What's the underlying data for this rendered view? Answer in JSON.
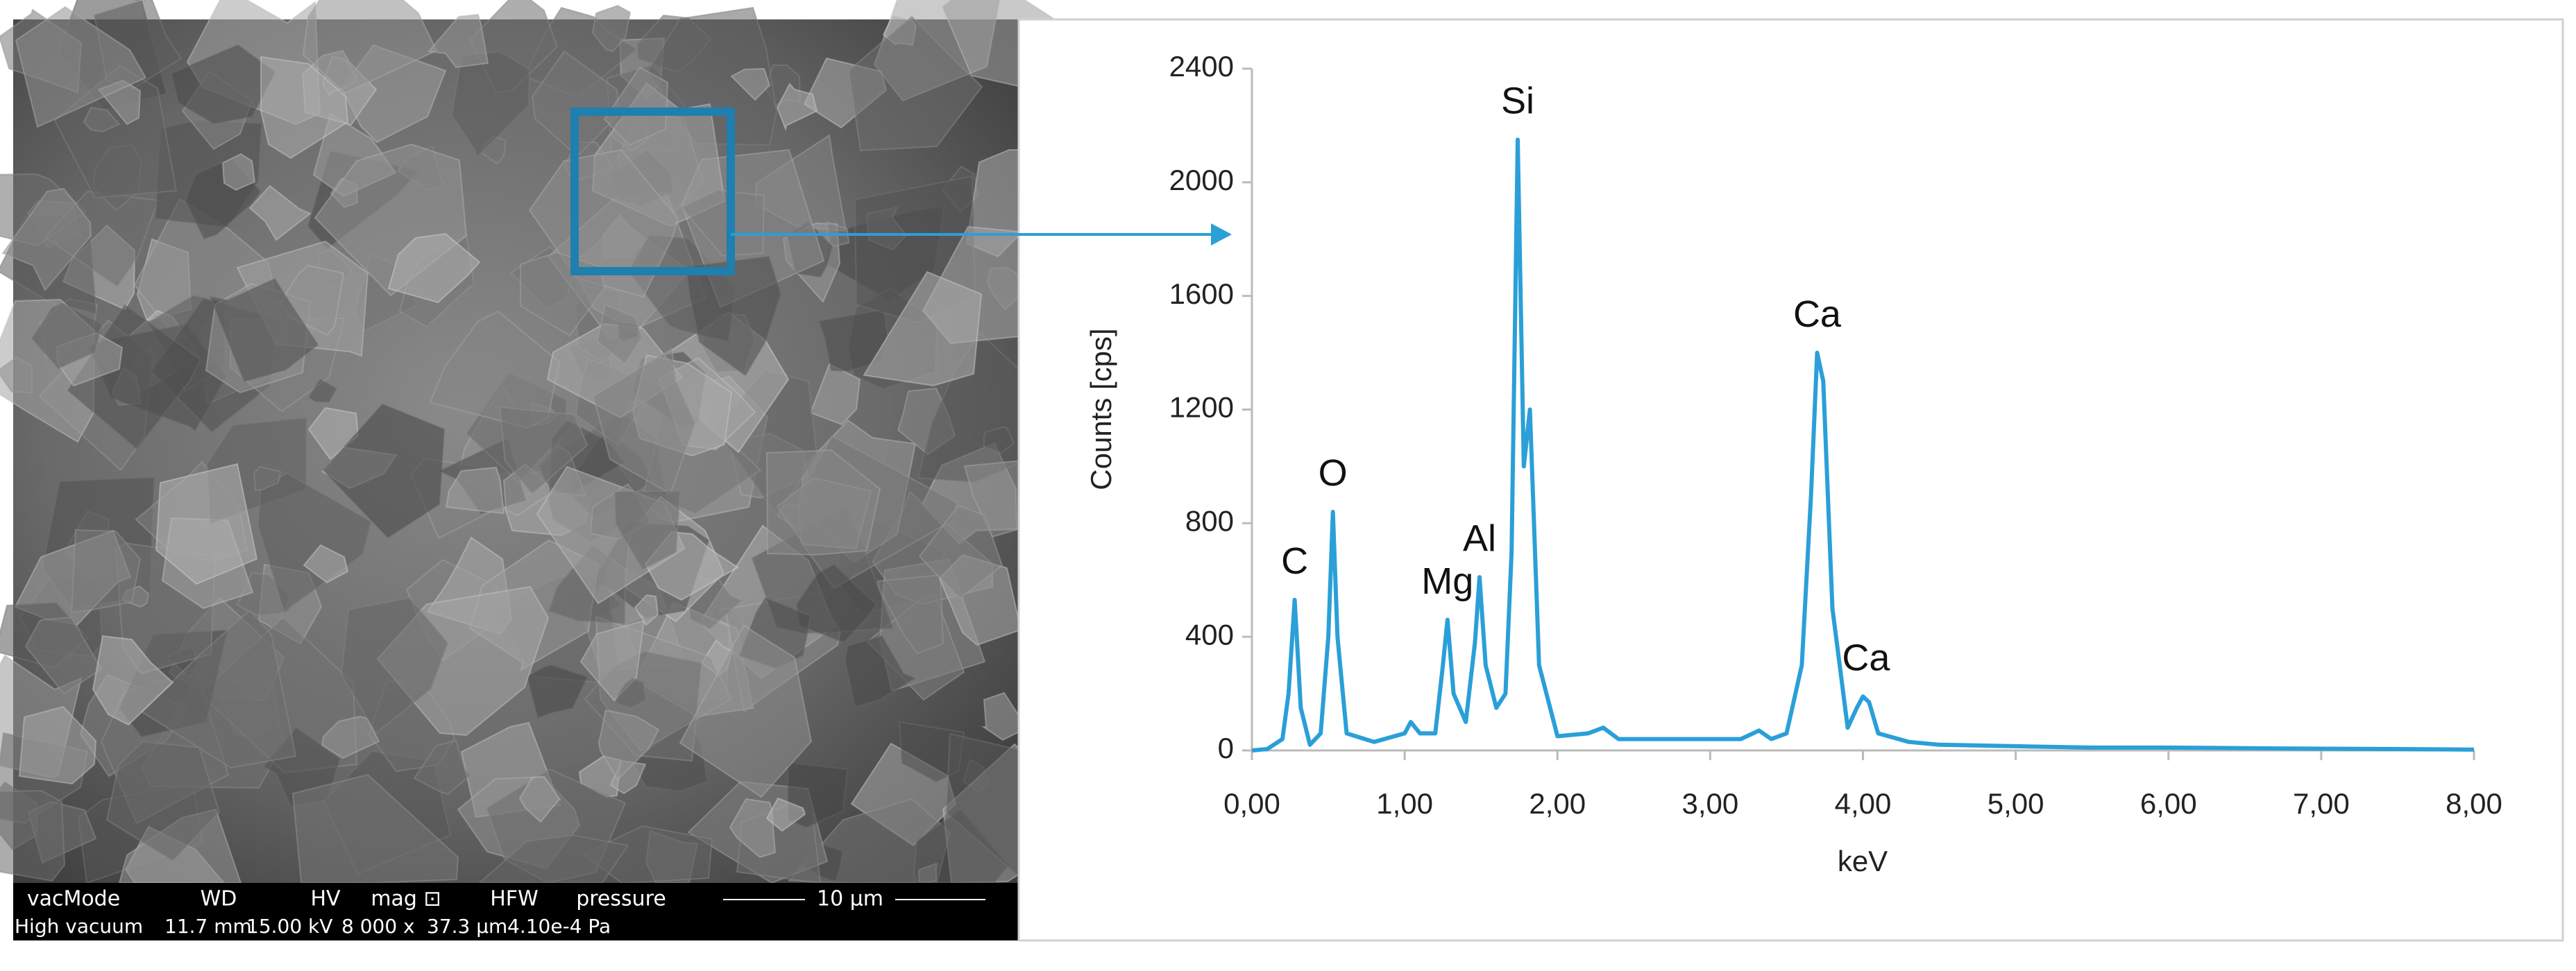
{
  "sem": {
    "header": [
      "vacMode",
      "WD",
      "HV",
      "mag ⊡",
      "HFW",
      "pressure"
    ],
    "scale_bar": "10 μm",
    "values": [
      "High vacuum",
      "11.7 mm",
      "15.00 kV",
      "8 000 x",
      "37.3 μm",
      "4.10e-4 Pa"
    ]
  },
  "chart_data": {
    "type": "line",
    "x_label": "keV",
    "y_label": "Counts [cps]",
    "color": "#2a9fd8",
    "x": [
      0,
      0.1,
      0.2,
      0.24,
      0.28,
      0.32,
      0.38,
      0.45,
      0.5,
      0.53,
      0.56,
      0.62,
      0.8,
      1.0,
      1.04,
      1.1,
      1.2,
      1.25,
      1.28,
      1.32,
      1.4,
      1.46,
      1.49,
      1.53,
      1.6,
      1.66,
      1.7,
      1.74,
      1.78,
      1.82,
      1.88,
      2.0,
      2.2,
      2.3,
      2.4,
      2.6,
      3.0,
      3.2,
      3.32,
      3.4,
      3.5,
      3.6,
      3.66,
      3.7,
      3.74,
      3.8,
      3.9,
      3.96,
      4.0,
      4.04,
      4.1,
      4.3,
      4.5,
      5.0,
      5.5,
      6.0,
      6.5,
      7.0,
      7.5,
      8.0
    ],
    "values": [
      0,
      5,
      40,
      200,
      530,
      150,
      20,
      60,
      400,
      840,
      400,
      60,
      30,
      60,
      100,
      60,
      60,
      300,
      460,
      200,
      100,
      380,
      610,
      300,
      150,
      200,
      700,
      2150,
      1000,
      1200,
      300,
      50,
      60,
      80,
      40,
      40,
      40,
      40,
      70,
      40,
      60,
      300,
      900,
      1400,
      1300,
      500,
      80,
      150,
      190,
      170,
      60,
      30,
      20,
      15,
      10,
      10,
      8,
      6,
      5,
      3
    ],
    "xlim": [
      0,
      8
    ],
    "ylim": [
      0,
      2400
    ],
    "xticks": [
      {
        "value": 0,
        "label": "0,00"
      },
      {
        "value": 1,
        "label": "1,00"
      },
      {
        "value": 2,
        "label": "2,00"
      },
      {
        "value": 3,
        "label": "3,00"
      },
      {
        "value": 4,
        "label": "4,00"
      },
      {
        "value": 5,
        "label": "5,00"
      },
      {
        "value": 6,
        "label": "6,00"
      },
      {
        "value": 7,
        "label": "7,00"
      },
      {
        "value": 8,
        "label": "8,00"
      }
    ],
    "yticks": [
      0,
      400,
      800,
      1200,
      1600,
      2000,
      2400
    ],
    "annotations": [
      {
        "text": "C",
        "x": 0.28,
        "y": 530
      },
      {
        "text": "O",
        "x": 0.53,
        "y": 840
      },
      {
        "text": "Mg",
        "x": 1.28,
        "y": 460
      },
      {
        "text": "Al",
        "x": 1.49,
        "y": 610
      },
      {
        "text": "Si",
        "x": 1.74,
        "y": 2150
      },
      {
        "text": "Ca",
        "x": 3.7,
        "y": 1400
      },
      {
        "text": "Ca",
        "x": 4.02,
        "y": 190
      }
    ]
  }
}
